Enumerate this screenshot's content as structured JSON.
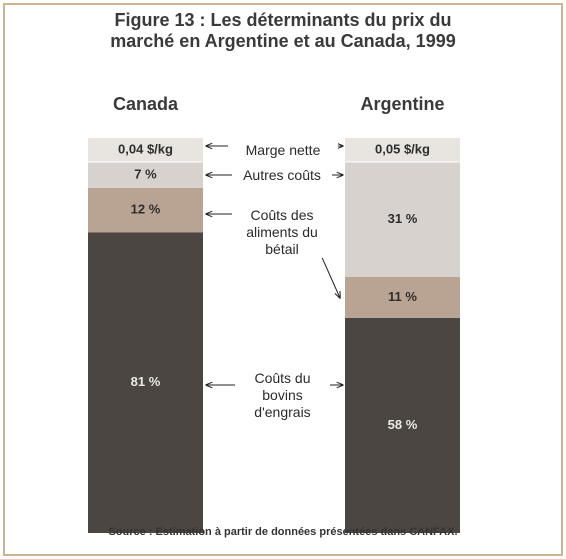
{
  "chart_data": {
    "type": "bar",
    "stacked": true,
    "title": "Figure 13 : Les déterminants du prix du marché en Argentine et au Canada, 1999",
    "categories": [
      "Canada",
      "Argentine"
    ],
    "series": [
      {
        "name": "Coûts du bovins d'engrais",
        "color": "#4b4642",
        "values": [
          81,
          58
        ],
        "value_labels": [
          "81 %",
          "58 %"
        ]
      },
      {
        "name": "Coûts des aliments du bétail",
        "color": "#b9a493",
        "values": [
          12,
          11
        ],
        "value_labels": [
          "12 %",
          "11 %"
        ]
      },
      {
        "name": "Autres coûts",
        "color": "#d7d2cd",
        "values": [
          7,
          31
        ],
        "value_labels": [
          "7 %",
          "31 %"
        ]
      }
    ],
    "margin": {
      "name": "Marge nette",
      "color": "#e8e5e1",
      "values": [
        0.04,
        0.05
      ],
      "value_labels": [
        "0,04 $/kg",
        "0,05 $/kg"
      ]
    },
    "source": "Source : Estimation à partir de données présentées dans CANFAX."
  }
}
